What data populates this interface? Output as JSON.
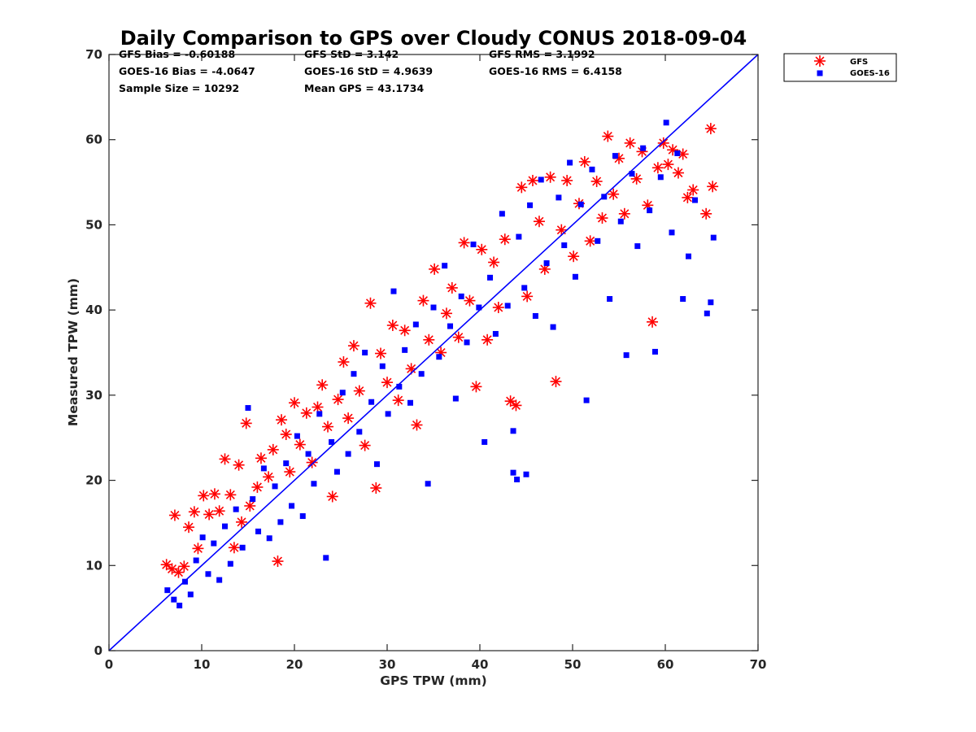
{
  "chart_data": {
    "type": "scatter",
    "title": "Daily Comparison to GPS over Cloudy CONUS 2018-09-04",
    "xlabel": "GPS TPW (mm)",
    "ylabel": "Measured TPW (mm)",
    "xlim": [
      0,
      70
    ],
    "ylim": [
      0,
      70
    ],
    "xticks": [
      "0",
      "10",
      "20",
      "30",
      "40",
      "50",
      "60",
      "70"
    ],
    "yticks": [
      "0",
      "10",
      "20",
      "30",
      "40",
      "50",
      "60",
      "70"
    ],
    "grid": false,
    "legend_position": "outside top-right",
    "stats": [
      [
        "GFS Bias = -0.60188",
        "GFS StD = 3.142",
        "GFS RMS = 3.1992"
      ],
      [
        "GOES-16 Bias = -4.0647",
        "GOES-16 StD = 4.9639",
        "GOES-16 RMS = 6.4158"
      ],
      [
        "Sample Size = 10292",
        "Mean GPS = 43.1734",
        ""
      ]
    ],
    "reference_line": {
      "x": [
        0,
        70
      ],
      "y": [
        0,
        70
      ],
      "color": "#0000ff"
    },
    "series": [
      {
        "name": "GFS",
        "marker": "asterisk",
        "color": "#ff0000",
        "points": [
          [
            6.2,
            10.1
          ],
          [
            6.8,
            9.6
          ],
          [
            7.1,
            15.9
          ],
          [
            7.5,
            9.2
          ],
          [
            8.1,
            9.9
          ],
          [
            8.6,
            14.5
          ],
          [
            9.2,
            16.3
          ],
          [
            9.6,
            12.0
          ],
          [
            10.2,
            18.2
          ],
          [
            10.8,
            16.0
          ],
          [
            11.4,
            18.4
          ],
          [
            11.9,
            16.4
          ],
          [
            12.5,
            22.5
          ],
          [
            13.1,
            18.3
          ],
          [
            13.5,
            12.1
          ],
          [
            14.0,
            21.8
          ],
          [
            14.3,
            15.1
          ],
          [
            14.8,
            26.7
          ],
          [
            15.2,
            17.0
          ],
          [
            16.0,
            19.2
          ],
          [
            16.4,
            22.6
          ],
          [
            17.2,
            20.4
          ],
          [
            17.7,
            23.6
          ],
          [
            18.2,
            10.5
          ],
          [
            18.6,
            27.1
          ],
          [
            19.1,
            25.4
          ],
          [
            19.5,
            21.0
          ],
          [
            20.0,
            29.1
          ],
          [
            20.6,
            24.2
          ],
          [
            21.3,
            27.9
          ],
          [
            21.9,
            22.1
          ],
          [
            22.5,
            28.6
          ],
          [
            23.0,
            31.2
          ],
          [
            23.6,
            26.3
          ],
          [
            24.1,
            18.1
          ],
          [
            24.7,
            29.5
          ],
          [
            25.3,
            33.9
          ],
          [
            25.8,
            27.3
          ],
          [
            26.4,
            35.8
          ],
          [
            27.0,
            30.5
          ],
          [
            27.6,
            24.1
          ],
          [
            28.2,
            40.8
          ],
          [
            28.8,
            19.1
          ],
          [
            29.3,
            34.9
          ],
          [
            30.0,
            31.5
          ],
          [
            30.6,
            38.2
          ],
          [
            31.2,
            29.4
          ],
          [
            31.9,
            37.6
          ],
          [
            32.6,
            33.1
          ],
          [
            33.2,
            26.5
          ],
          [
            33.9,
            41.1
          ],
          [
            34.5,
            36.5
          ],
          [
            35.1,
            44.8
          ],
          [
            35.8,
            35.0
          ],
          [
            36.4,
            39.6
          ],
          [
            37.0,
            42.6
          ],
          [
            37.7,
            36.8
          ],
          [
            38.3,
            47.9
          ],
          [
            38.9,
            41.1
          ],
          [
            39.6,
            31.0
          ],
          [
            40.2,
            47.1
          ],
          [
            40.8,
            36.5
          ],
          [
            41.5,
            45.6
          ],
          [
            42.0,
            40.3
          ],
          [
            42.7,
            48.3
          ],
          [
            43.3,
            29.3
          ],
          [
            43.9,
            28.8
          ],
          [
            44.5,
            54.4
          ],
          [
            45.1,
            41.6
          ],
          [
            45.7,
            55.2
          ],
          [
            46.4,
            50.4
          ],
          [
            47.0,
            44.8
          ],
          [
            47.6,
            55.6
          ],
          [
            48.2,
            31.6
          ],
          [
            48.8,
            49.4
          ],
          [
            49.4,
            55.2
          ],
          [
            50.1,
            46.3
          ],
          [
            50.7,
            52.5
          ],
          [
            51.3,
            57.4
          ],
          [
            51.9,
            48.1
          ],
          [
            52.6,
            55.1
          ],
          [
            53.2,
            50.8
          ],
          [
            53.8,
            60.4
          ],
          [
            54.4,
            53.6
          ],
          [
            55.0,
            57.8
          ],
          [
            55.6,
            51.3
          ],
          [
            56.2,
            59.6
          ],
          [
            56.9,
            55.4
          ],
          [
            57.5,
            58.6
          ],
          [
            58.1,
            52.3
          ],
          [
            58.6,
            38.6
          ],
          [
            59.2,
            56.7
          ],
          [
            59.8,
            59.6
          ],
          [
            60.3,
            57.1
          ],
          [
            60.8,
            58.8
          ],
          [
            61.4,
            56.1
          ],
          [
            61.9,
            58.3
          ],
          [
            62.4,
            53.2
          ],
          [
            63.0,
            54.1
          ],
          [
            64.4,
            51.3
          ],
          [
            64.9,
            61.3
          ],
          [
            65.1,
            54.5
          ]
        ]
      },
      {
        "name": "GOES-16",
        "marker": "square",
        "color": "#0000ff",
        "points": [
          [
            6.3,
            7.1
          ],
          [
            7.0,
            6.0
          ],
          [
            7.6,
            5.3
          ],
          [
            8.2,
            8.1
          ],
          [
            8.8,
            6.6
          ],
          [
            9.4,
            10.6
          ],
          [
            10.1,
            13.3
          ],
          [
            10.7,
            9.0
          ],
          [
            11.3,
            12.6
          ],
          [
            11.9,
            8.3
          ],
          [
            12.5,
            14.6
          ],
          [
            13.1,
            10.2
          ],
          [
            13.7,
            16.6
          ],
          [
            14.4,
            12.1
          ],
          [
            15.0,
            28.5
          ],
          [
            15.5,
            17.8
          ],
          [
            16.1,
            14.0
          ],
          [
            16.7,
            21.4
          ],
          [
            17.3,
            13.2
          ],
          [
            17.9,
            19.3
          ],
          [
            18.5,
            15.1
          ],
          [
            19.1,
            22.0
          ],
          [
            19.7,
            17.0
          ],
          [
            20.3,
            25.2
          ],
          [
            20.9,
            15.8
          ],
          [
            21.5,
            23.1
          ],
          [
            22.1,
            19.6
          ],
          [
            22.7,
            27.8
          ],
          [
            23.4,
            10.9
          ],
          [
            24.0,
            24.5
          ],
          [
            24.6,
            21.0
          ],
          [
            25.2,
            30.3
          ],
          [
            25.8,
            23.1
          ],
          [
            26.4,
            32.5
          ],
          [
            27.0,
            25.7
          ],
          [
            27.6,
            35.0
          ],
          [
            28.3,
            29.2
          ],
          [
            28.9,
            21.9
          ],
          [
            29.5,
            33.4
          ],
          [
            30.1,
            27.8
          ],
          [
            30.7,
            42.2
          ],
          [
            31.3,
            31.0
          ],
          [
            31.9,
            35.3
          ],
          [
            32.5,
            29.1
          ],
          [
            33.1,
            38.3
          ],
          [
            33.7,
            32.5
          ],
          [
            34.4,
            19.6
          ],
          [
            35.0,
            40.3
          ],
          [
            35.6,
            34.5
          ],
          [
            36.2,
            45.2
          ],
          [
            36.8,
            38.1
          ],
          [
            37.4,
            29.6
          ],
          [
            38.0,
            41.6
          ],
          [
            38.6,
            36.2
          ],
          [
            39.3,
            47.7
          ],
          [
            39.9,
            40.3
          ],
          [
            40.5,
            24.5
          ],
          [
            41.1,
            43.8
          ],
          [
            41.7,
            37.2
          ],
          [
            42.4,
            51.3
          ],
          [
            43.0,
            40.5
          ],
          [
            43.6,
            20.9
          ],
          [
            44.2,
            48.6
          ],
          [
            44.8,
            42.6
          ],
          [
            45.4,
            52.3
          ],
          [
            46.0,
            39.3
          ],
          [
            46.6,
            55.3
          ],
          [
            47.2,
            45.5
          ],
          [
            47.9,
            38.0
          ],
          [
            48.5,
            53.2
          ],
          [
            49.1,
            47.6
          ],
          [
            49.7,
            57.3
          ],
          [
            50.3,
            43.9
          ],
          [
            50.9,
            52.4
          ],
          [
            51.5,
            29.4
          ],
          [
            52.1,
            56.5
          ],
          [
            52.7,
            48.1
          ],
          [
            53.4,
            53.3
          ],
          [
            54.0,
            41.3
          ],
          [
            54.6,
            58.1
          ],
          [
            55.2,
            50.4
          ],
          [
            55.8,
            34.7
          ],
          [
            56.4,
            56.0
          ],
          [
            57.0,
            47.5
          ],
          [
            57.6,
            59.0
          ],
          [
            58.3,
            51.7
          ],
          [
            58.9,
            35.1
          ],
          [
            59.5,
            55.6
          ],
          [
            60.1,
            62.0
          ],
          [
            60.7,
            49.1
          ],
          [
            61.3,
            58.4
          ],
          [
            61.9,
            41.3
          ],
          [
            62.5,
            46.3
          ],
          [
            63.2,
            52.9
          ],
          [
            64.5,
            39.6
          ],
          [
            64.9,
            40.9
          ],
          [
            65.2,
            48.5
          ],
          [
            45.0,
            20.7
          ],
          [
            44.0,
            20.1
          ],
          [
            43.6,
            25.8
          ]
        ]
      }
    ]
  }
}
